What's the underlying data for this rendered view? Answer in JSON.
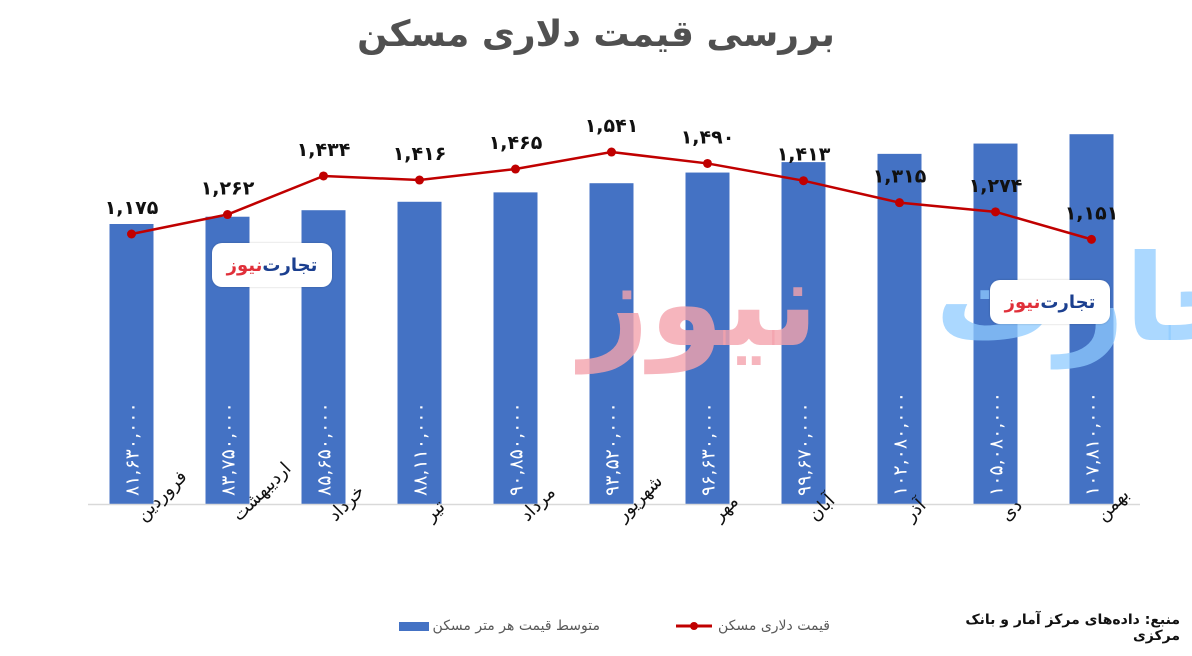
{
  "title": "بررسی قیمت دلاری مسکن",
  "source": "منبع: داده‌های مرکز آمار و بانک مرکزی",
  "watermark": {
    "big_part1": "تجارت",
    "big_part2": "نیوز",
    "badge_part1": "تجارت",
    "badge_part2": "نیوز"
  },
  "legend": {
    "line_label": "قیمت دلاری مسکن",
    "bar_label": "متوسط قیمت هر متر مسکن"
  },
  "colors": {
    "bar": "#4472C4",
    "line": "#C00000",
    "title": "#505050",
    "watermark_pink": "#F4A3AD",
    "watermark_blue": "#1A4FE0",
    "watermark_lightblue": "#8FCBFF"
  },
  "chart_data": {
    "type": "bar",
    "title": "بررسی قیمت دلاری مسکن",
    "xlabel": "",
    "ylabel": "",
    "grid": false,
    "legend_position": "bottom",
    "categories": [
      "فروردین",
      "اردیبهشت",
      "خرداد",
      "تیر",
      "مرداد",
      "شهریور",
      "مهر",
      "آبان",
      "آذر",
      "دی",
      "بهمن"
    ],
    "series": [
      {
        "name": "متوسط قیمت هر متر مسکن",
        "type": "bar",
        "values": [
          81630000,
          83750000,
          85650000,
          88110000,
          90850000,
          93520000,
          96630000,
          99670000,
          102080000,
          105080000,
          107810000
        ],
        "labels": [
          "۸۱,۶۳۰,۰۰۰",
          "۸۳,۷۵۰,۰۰۰",
          "۸۵,۶۵۰,۰۰۰",
          "۸۸,۱۱۰,۰۰۰",
          "۹۰,۸۵۰,۰۰۰",
          "۹۳,۵۲۰,۰۰۰",
          "۹۶,۶۳۰,۰۰۰",
          "۹۹,۶۷۰,۰۰۰",
          "۱۰۲,۰۸۰,۰۰۰",
          "۱۰۵,۰۸۰,۰۰۰",
          "۱۰۷,۸۱۰,۰۰۰"
        ]
      },
      {
        "name": "قیمت دلاری مسکن",
        "type": "line",
        "values": [
          1175,
          1262,
          1434,
          1416,
          1465,
          1541,
          1490,
          1413,
          1315,
          1274,
          1151
        ],
        "labels": [
          "۱,۱۷۵",
          "۱,۲۶۲",
          "۱,۴۳۴",
          "۱,۴۱۶",
          "۱,۴۶۵",
          "۱,۵۴۱",
          "۱,۴۹۰",
          "۱,۴۱۳",
          "۱,۳۱۵",
          "۱,۲۷۴",
          "۱,۱۵۱"
        ]
      }
    ]
  }
}
